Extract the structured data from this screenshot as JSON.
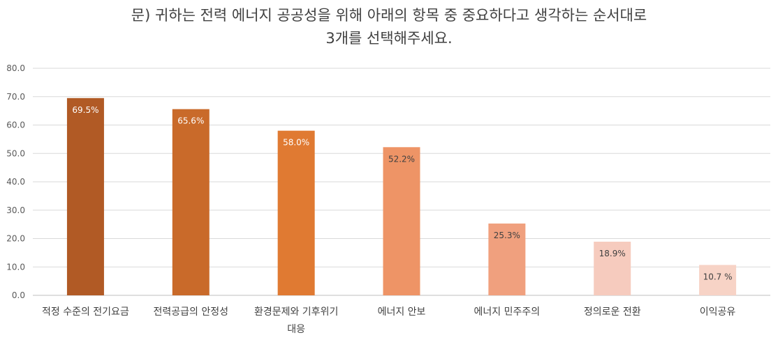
{
  "chart_data": {
    "type": "bar",
    "title_lines": [
      "문) 귀하는 전력 에너지 공공성을 위해 아래의 항목 중 중요하다고 생각하는 순서대로",
      "3개를 선택해주세요."
    ],
    "categories": [
      [
        "적정 수준의 전기요금"
      ],
      [
        "전력공급의 안정성"
      ],
      [
        "환경문제와 기후위기",
        "대응"
      ],
      [
        "에너지 안보"
      ],
      [
        "에너지 민주주의"
      ],
      [
        "정의로운 전환"
      ],
      [
        "이익공유"
      ]
    ],
    "values": [
      69.5,
      65.6,
      58.0,
      52.2,
      25.3,
      18.9,
      10.7
    ],
    "data_labels": [
      "69.5%",
      "65.6%",
      "58.0%",
      "52.2%",
      "25.3%",
      "18.9%",
      "10.7 %"
    ],
    "bar_colors": [
      "#B15A25",
      "#C96A2A",
      "#E07A32",
      "#EE9466",
      "#F0A07E",
      "#F6CBBE",
      "#F7D3C6"
    ],
    "label_colors": [
      "#ffffff",
      "#ffffff",
      "#ffffff",
      "#404040",
      "#404040",
      "#404040",
      "#404040"
    ],
    "y_ticks": [
      "0.0",
      "10.0",
      "20.0",
      "30.0",
      "40.0",
      "50.0",
      "60.0",
      "70.0",
      "80.0"
    ],
    "ylim": [
      0,
      80
    ],
    "grid": true,
    "xlabel": "",
    "ylabel": ""
  }
}
